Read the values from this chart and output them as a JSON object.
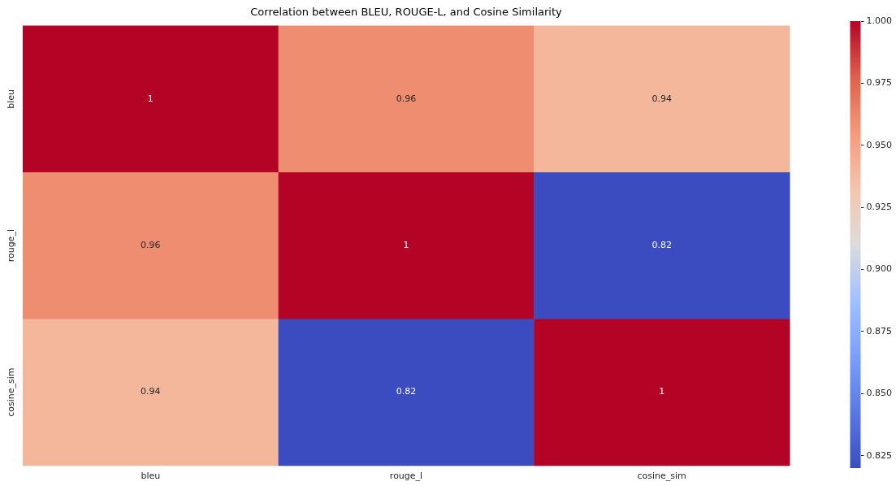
{
  "chart_data": {
    "type": "heatmap",
    "title": "Correlation between BLEU, ROUGE-L, and Cosine Similarity",
    "categories": [
      "bleu",
      "rouge_l",
      "cosine_sim"
    ],
    "y_categories": [
      "bleu",
      "rouge_l",
      "cosine_sim"
    ],
    "cells": [
      [
        1,
        0.96,
        0.94
      ],
      [
        0.96,
        1,
        0.82
      ],
      [
        0.94,
        0.82,
        1
      ]
    ],
    "clim": [
      0.82,
      1
    ],
    "cticks": [
      {
        "value": 0.825,
        "label": "0.825"
      },
      {
        "value": 0.85,
        "label": "0.850"
      },
      {
        "value": 0.875,
        "label": "0.875"
      },
      {
        "value": 0.9,
        "label": "0.900"
      },
      {
        "value": 0.925,
        "label": "0.925"
      },
      {
        "value": 0.95,
        "label": "0.950"
      },
      {
        "value": 0.975,
        "label": "0.975"
      },
      {
        "value": 1,
        "label": "1.000"
      }
    ],
    "data_labels": true
  }
}
